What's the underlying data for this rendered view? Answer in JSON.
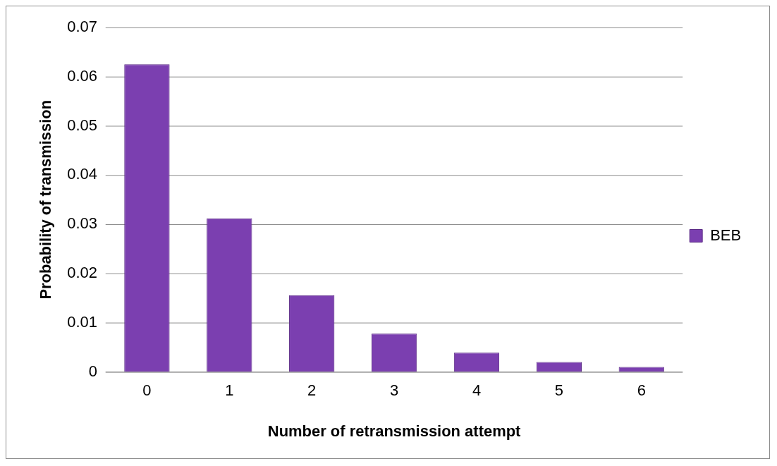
{
  "chart_data": {
    "type": "bar",
    "xlabel": "Number of retransmission attempt",
    "ylabel": "Probability of transmission",
    "categories": [
      "0",
      "1",
      "2",
      "3",
      "4",
      "5",
      "6"
    ],
    "series": [
      {
        "name": "BEB",
        "color": "#7b3fb0",
        "values": [
          0.0625,
          0.0312,
          0.0156,
          0.0078,
          0.0039,
          0.002,
          0.001
        ]
      }
    ],
    "ylim": [
      0,
      0.07
    ],
    "yticks": [
      0,
      0.01,
      0.02,
      0.03,
      0.04,
      0.05,
      0.06,
      0.07
    ],
    "grid": "y",
    "legend": "right"
  }
}
